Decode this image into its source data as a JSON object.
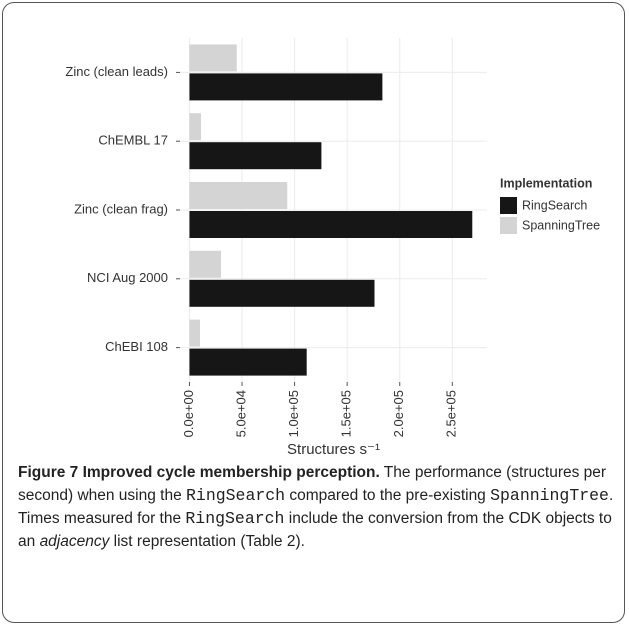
{
  "chart_data": {
    "type": "bar",
    "orientation": "horizontal",
    "categories": [
      "Zinc (clean leads)",
      "ChEMBL 17",
      "Zinc (clean frag)",
      "NCI Aug 2000",
      "ChEBI 108"
    ],
    "series": [
      {
        "name": "SpanningTree",
        "color": "#d4d4d4",
        "values": [
          45000,
          11000,
          93000,
          30000,
          10000
        ]
      },
      {
        "name": "RingSearch",
        "color": "#161616",
        "values": [
          183500,
          125500,
          269000,
          176000,
          111500
        ]
      }
    ],
    "x_label": "Structures s⁻¹",
    "legend_title": "Implementation",
    "legend_order": [
      "RingSearch",
      "SpanningTree"
    ],
    "xlim": [
      -9000,
      283000
    ],
    "xticks": [
      {
        "value": 0,
        "label": "0.0e+00"
      },
      {
        "value": 50000,
        "label": "5.0e+04"
      },
      {
        "value": 100000,
        "label": "1.0e+05"
      },
      {
        "value": 150000,
        "label": "1.5e+05"
      },
      {
        "value": 200000,
        "label": "2.0e+05"
      },
      {
        "value": 250000,
        "label": "2.5e+05"
      }
    ],
    "grid": true,
    "legend_position": "right"
  },
  "caption": {
    "title": "Figure 7 Improved cycle membership perception.",
    "segments": [
      {
        "text": " The performance (structures per second) when using the ",
        "style": "normal"
      },
      {
        "text": "RingSearch",
        "style": "mono"
      },
      {
        "text": " compared to the pre-existing ",
        "style": "normal"
      },
      {
        "text": "SpanningTree",
        "style": "mono"
      },
      {
        "text": ". Times measured for the ",
        "style": "normal"
      },
      {
        "text": "RingSearch",
        "style": "mono"
      },
      {
        "text": " include the conversion from the CDK objects to an ",
        "style": "normal"
      },
      {
        "text": "adjacency",
        "style": "italic"
      },
      {
        "text": " list representation (Table 2).",
        "style": "normal"
      }
    ]
  }
}
